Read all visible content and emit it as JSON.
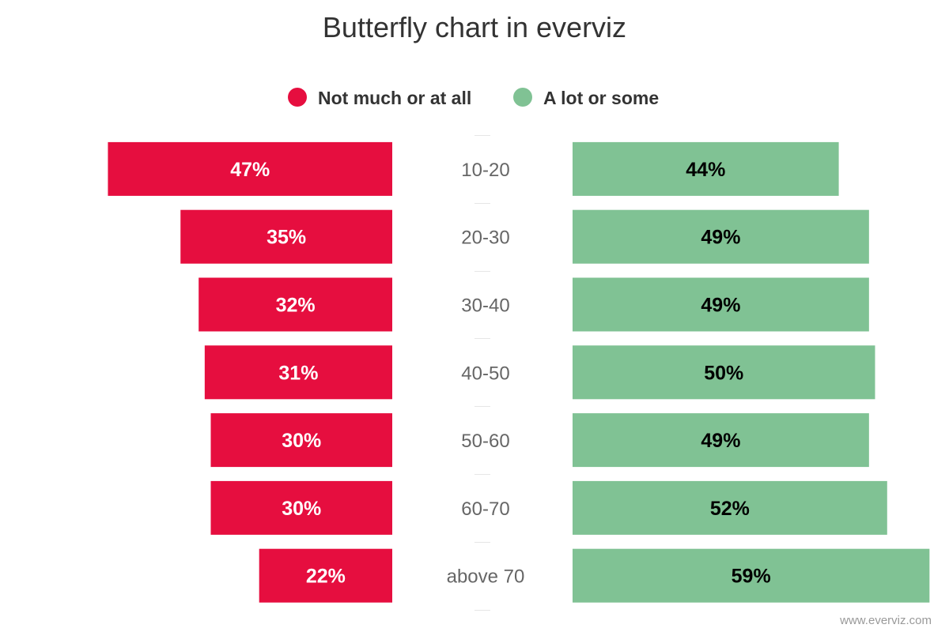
{
  "chart_data": {
    "type": "bar",
    "title": "Butterfly chart in everviz",
    "categories": [
      "10-20",
      "20-30",
      "30-40",
      "40-50",
      "50-60",
      "60-70",
      "above 70"
    ],
    "series": [
      {
        "name": "Not much or at all",
        "color": "#e60e3f",
        "label_color": "#ffffff",
        "values": [
          47,
          35,
          32,
          31,
          30,
          30,
          22
        ],
        "labels": [
          "47%",
          "35%",
          "32%",
          "31%",
          "30%",
          "30%",
          "22%"
        ]
      },
      {
        "name": "A lot or some",
        "color": "#80c294",
        "label_color": "#000000",
        "values": [
          44,
          49,
          49,
          50,
          49,
          52,
          59
        ],
        "labels": [
          "44%",
          "49%",
          "49%",
          "50%",
          "49%",
          "52%",
          "59%"
        ]
      }
    ],
    "legend_position": "top-center",
    "grid": false,
    "credit": "www.everviz.com"
  }
}
